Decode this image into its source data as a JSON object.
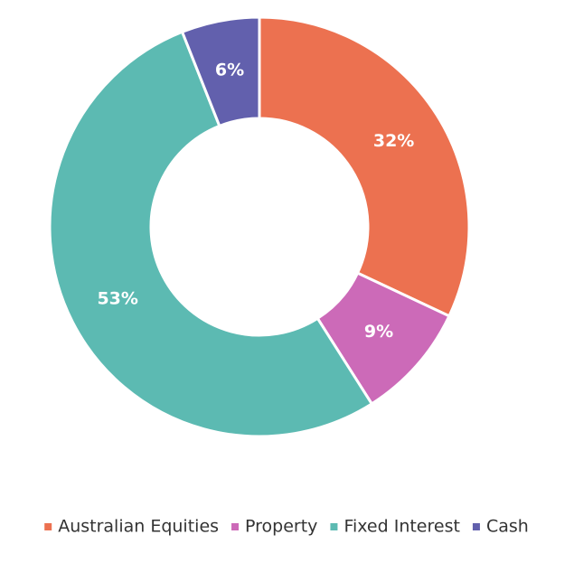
{
  "chart_data": {
    "type": "donut",
    "categories": [
      "Australian Equities",
      "Property",
      "Fixed Interest",
      "Cash"
    ],
    "values": [
      32,
      9,
      53,
      6
    ],
    "value_labels": [
      "32%",
      "9%",
      "53%",
      "6%"
    ],
    "colors": [
      "#ec7150",
      "#cc6ab8",
      "#5cbab2",
      "#6260ad"
    ],
    "legend": "bottom"
  }
}
